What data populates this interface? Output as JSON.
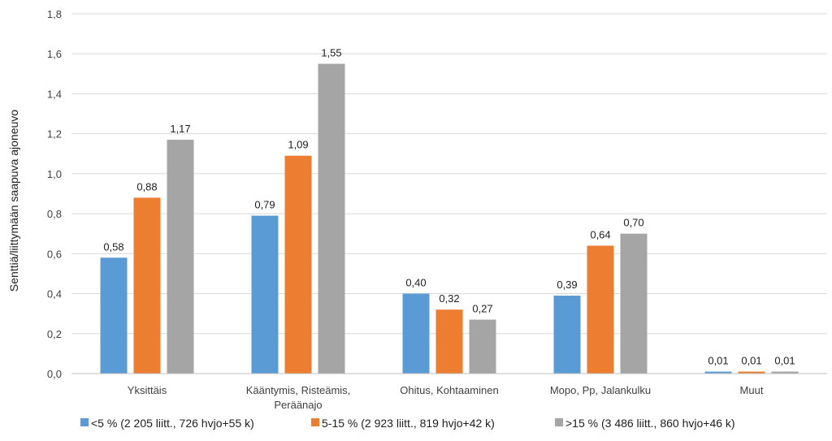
{
  "chart_data": {
    "type": "bar",
    "title": "",
    "xlabel": "",
    "ylabel": "Senttiä/liittymään saapuva ajoneuvo",
    "ylim": [
      0,
      1.8
    ],
    "ytick_step": 0.2,
    "ytick_labels": [
      "0,0",
      "0,2",
      "0,4",
      "0,6",
      "0,8",
      "1,0",
      "1,2",
      "1,4",
      "1,6",
      "1,8"
    ],
    "grid": true,
    "legend_position": "bottom",
    "categories": [
      [
        "Yksittäis"
      ],
      [
        "Kääntymis, Risteämis,",
        "Peräänajo"
      ],
      [
        "Ohitus, Kohtaaminen"
      ],
      [
        "Mopo, Pp, Jalankulku"
      ],
      [
        "Muut"
      ]
    ],
    "series": [
      {
        "name": "<5 % (2 205 liitt., 726 hvjo+55 k)",
        "color": "#5B9BD5",
        "values": [
          0.58,
          0.79,
          0.4,
          0.39,
          0.01
        ],
        "labels": [
          "0,58",
          "0,79",
          "0,40",
          "0,39",
          "0,01"
        ]
      },
      {
        "name": "5-15 % (2 923 liitt., 819 hvjo+42 k)",
        "color": "#ED7D31",
        "values": [
          0.88,
          1.09,
          0.32,
          0.64,
          0.01
        ],
        "labels": [
          "0,88",
          "1,09",
          "0,32",
          "0,64",
          "0,01"
        ]
      },
      {
        "name": ">15 % (3 486 liitt., 860 hvjo+46 k)",
        "color": "#A5A5A5",
        "values": [
          1.17,
          1.55,
          0.27,
          0.7,
          0.01
        ],
        "labels": [
          "1,17",
          "1,55",
          "0,27",
          "0,70",
          "0,01"
        ]
      }
    ]
  }
}
